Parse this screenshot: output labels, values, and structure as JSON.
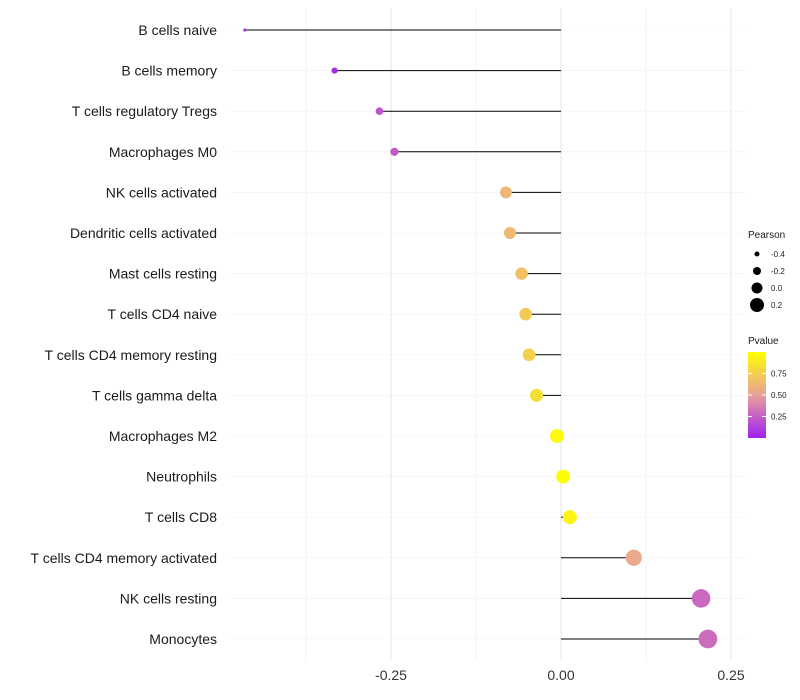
{
  "chart_data": {
    "type": "lollipop",
    "title": "",
    "xlabel": "",
    "ylabel": "",
    "xlim": [
      -0.5,
      0.3
    ],
    "x_ticks": [
      {
        "value": -0.25,
        "label": "-0.25"
      },
      {
        "value": 0,
        "label": "0.00"
      },
      {
        "value": 0.25,
        "label": "0.25"
      }
    ],
    "x_minor_gridlines": [
      -0.375,
      -0.125,
      0.125
    ],
    "categories": [
      "B cells naive",
      "B cells memory",
      "T cells regulatory  Tregs",
      "Macrophages M0",
      "NK cells activated",
      "Dendritic cells activated",
      "Mast cells resting",
      "T cells CD4 naive",
      "T cells CD4 memory resting",
      "T cells gamma delta",
      "Macrophages M2",
      "Neutrophils",
      "T cells CD8",
      "T cells CD4 memory activated",
      "NK cells resting",
      "Monocytes"
    ],
    "values": [
      -0.465,
      -0.333,
      -0.267,
      -0.245,
      -0.081,
      -0.075,
      -0.058,
      -0.052,
      -0.047,
      -0.036,
      -0.006,
      0.003,
      0.013,
      0.107,
      0.206,
      0.216
    ],
    "pvalues": [
      0.02,
      0.05,
      0.2,
      0.22,
      0.62,
      0.63,
      0.68,
      0.72,
      0.76,
      0.82,
      0.97,
      0.98,
      0.94,
      0.55,
      0.28,
      0.3
    ],
    "size_legend": {
      "title": "Pearson",
      "entries": [
        {
          "value": -0.4,
          "label": "-0.4"
        },
        {
          "value": -0.2,
          "label": "-0.2"
        },
        {
          "value": 0.0,
          "label": "0.0"
        },
        {
          "value": 0.2,
          "label": "0.2"
        }
      ]
    },
    "color_legend": {
      "title": "Pvalue",
      "range": [
        0.0,
        1.0
      ],
      "ticks": [
        {
          "value": 0.75,
          "label": "0.75"
        },
        {
          "value": 0.5,
          "label": "0.50"
        },
        {
          "value": 0.25,
          "label": "0.25"
        }
      ],
      "low_color": "#a020f0",
      "mid_color": "#e8a09a",
      "high_color": "#ffff00"
    },
    "grid": true
  }
}
